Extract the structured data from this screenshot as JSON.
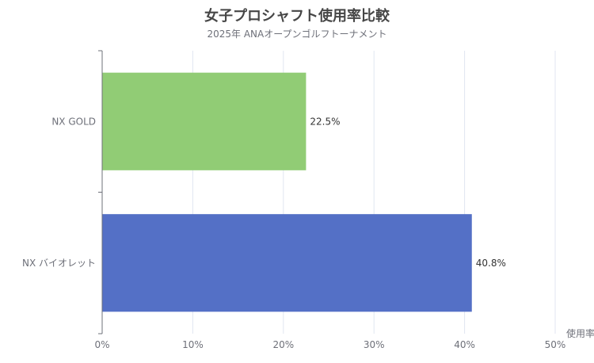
{
  "chart_data": {
    "type": "bar",
    "orientation": "horizontal",
    "title": "女子プロシャフト使用率比較",
    "subtitle": "2025年 ANAオープンゴルフトーナメント",
    "categories": [
      "NX GOLD",
      "NX バイオレット"
    ],
    "series": [
      {
        "values": [
          22.5,
          40.8
        ],
        "labels": [
          "22.5%",
          "40.8%"
        ],
        "colors": [
          "#91cc75",
          "#5470c6"
        ]
      }
    ],
    "xlabel": "使用率",
    "xlim": [
      0,
      50
    ],
    "xticks": [
      0,
      10,
      20,
      30,
      40,
      50
    ],
    "xtick_labels": [
      "0%",
      "10%",
      "20%",
      "30%",
      "40%",
      "50%"
    ],
    "grid": true,
    "legend": "none"
  }
}
